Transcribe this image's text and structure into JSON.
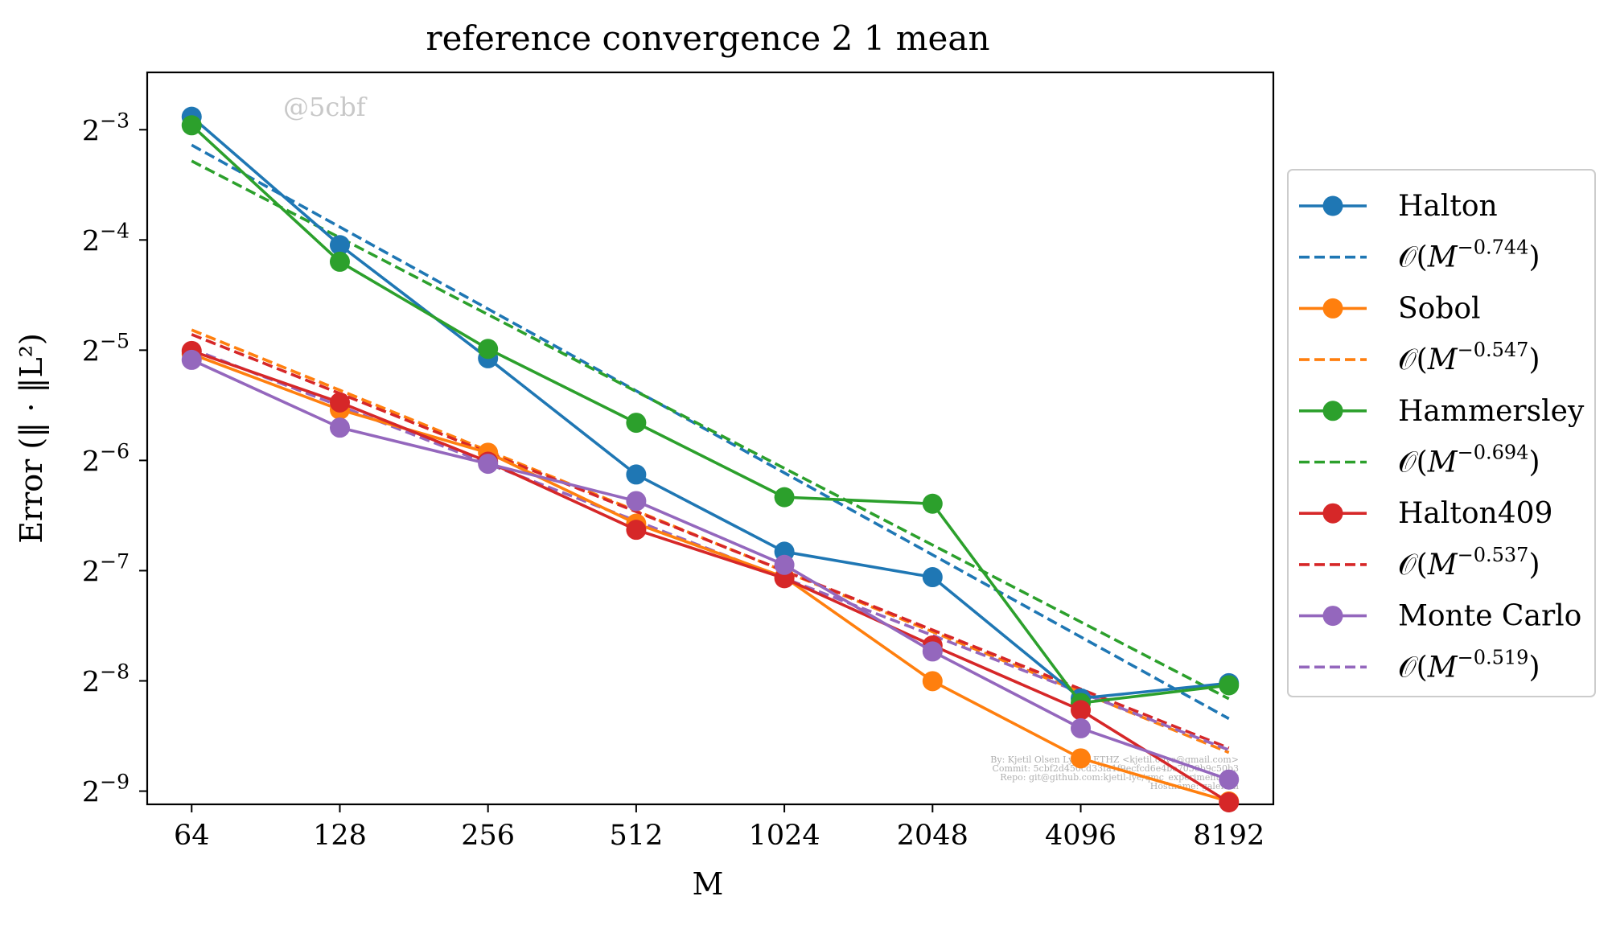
{
  "chart_data": {
    "type": "line",
    "title": "reference convergence 2 1 mean",
    "xlabel": "M",
    "ylabel": "Error (‖ · ‖L²)",
    "xscale": "log2",
    "yscale": "log2",
    "x": [
      64,
      128,
      256,
      512,
      1024,
      2048,
      4096,
      8192
    ],
    "x_tick_labels": [
      "64",
      "128",
      "256",
      "512",
      "1024",
      "2048",
      "4096",
      "8192"
    ],
    "y_ticks": [
      {
        "base": "2",
        "exp": "−3",
        "value": 0.125
      },
      {
        "base": "2",
        "exp": "−4",
        "value": 0.0625
      },
      {
        "base": "2",
        "exp": "−5",
        "value": 0.03125
      },
      {
        "base": "2",
        "exp": "−6",
        "value": 0.015625
      },
      {
        "base": "2",
        "exp": "−7",
        "value": 0.0078125
      },
      {
        "base": "2",
        "exp": "−8",
        "value": 0.00390625
      },
      {
        "base": "2",
        "exp": "−9",
        "value": 0.001953125
      }
    ],
    "log2_range": {
      "x": [
        5.7,
        13.3
      ],
      "y": [
        -9.12,
        -2.48
      ]
    },
    "grid": false,
    "legend_position": "outside-right",
    "series": [
      {
        "name": "Halton",
        "color": "#1f77b4",
        "style": "solid-marker",
        "values": [
          0.1356,
          0.0605,
          0.0297,
          0.0143,
          0.0088,
          0.0075,
          0.0035,
          0.00385
        ]
      },
      {
        "name": "O(M^-0.744)",
        "color": "#1f77b4",
        "style": "dashed",
        "rate_label": "−0.744",
        "values": [
          0.1135,
          0.0678,
          0.0405,
          0.0242,
          0.01445,
          0.00863,
          0.00515,
          0.00308
        ]
      },
      {
        "name": "Sobol",
        "color": "#ff7f0e",
        "style": "solid-marker",
        "values": [
          0.0305,
          0.0215,
          0.0164,
          0.0105,
          0.0075,
          0.0039,
          0.0024,
          0.00183
        ]
      },
      {
        "name": "O(M^-0.547)",
        "color": "#ff7f0e",
        "style": "dashed",
        "rate_label": "−0.547",
        "values": [
          0.0355,
          0.0243,
          0.0166,
          0.01138,
          0.00778,
          0.00532,
          0.00364,
          0.00249
        ]
      },
      {
        "name": "Hammersley",
        "color": "#2ca02c",
        "style": "solid-marker",
        "values": [
          0.1285,
          0.0545,
          0.0315,
          0.0198,
          0.0124,
          0.0119,
          0.0034,
          0.0038
        ]
      },
      {
        "name": "O(M^-0.694)",
        "color": "#2ca02c",
        "style": "dashed",
        "rate_label": "−0.694",
        "values": [
          0.1027,
          0.0634,
          0.0391,
          0.0241,
          0.01487,
          0.00918,
          0.00566,
          0.00349
        ]
      },
      {
        "name": "Halton409",
        "color": "#d62728",
        "style": "solid-marker",
        "values": [
          0.0311,
          0.0225,
          0.0155,
          0.0101,
          0.00745,
          0.00488,
          0.00325,
          0.00182
        ]
      },
      {
        "name": "O(M^-0.537)",
        "color": "#d62728",
        "style": "dashed",
        "rate_label": "−0.537",
        "values": [
          0.0345,
          0.0238,
          0.0164,
          0.01132,
          0.0078,
          0.00538,
          0.00371,
          0.00256
        ]
      },
      {
        "name": "Monte Carlo",
        "color": "#9467bd",
        "style": "solid-marker",
        "values": [
          0.0294,
          0.0192,
          0.0153,
          0.0121,
          0.0081,
          0.0047,
          0.0029,
          0.0021
        ]
      },
      {
        "name": "O(M^-0.519)",
        "color": "#9467bd",
        "style": "dashed",
        "rate_label": "−0.519",
        "values": [
          0.0315,
          0.022,
          0.0153,
          0.01068,
          0.00745,
          0.0052,
          0.00363,
          0.00253
        ]
      }
    ]
  },
  "watermark": "@5cbf",
  "credits": [
    "By: Kjetil Olsen Lye @ ETHZ <kjetil.o.lye@gmail.com>",
    "Commit: 5cbf2d450cd33fa1f9ecfcd6e4be7030b9c50b3",
    "Repo: git@github.com:kjetil-lye/qmc_experiments.git",
    "Hostname: galerkin"
  ]
}
